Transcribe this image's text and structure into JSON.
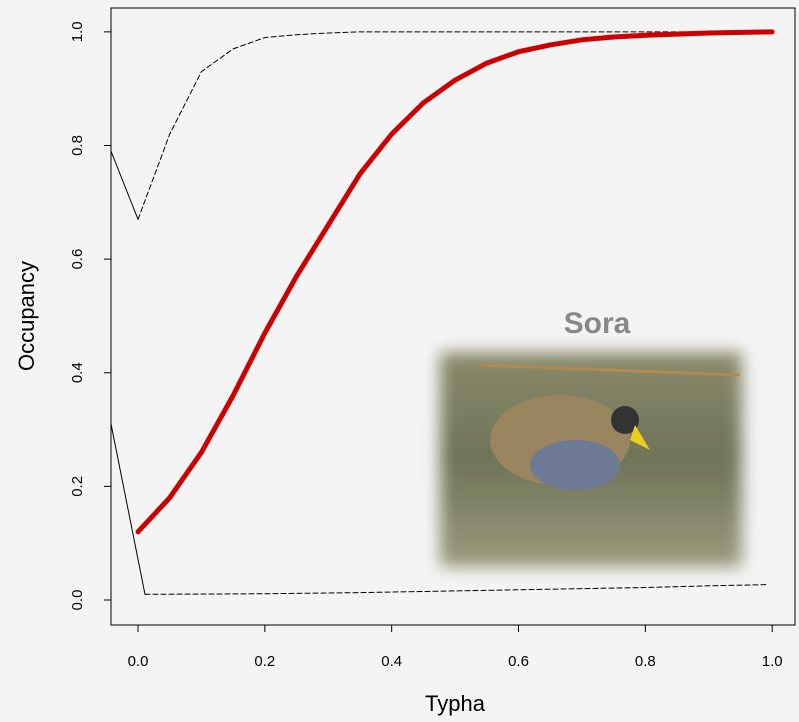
{
  "chart_data": {
    "type": "line",
    "xlabel": "Typha",
    "ylabel": "Occupancy",
    "annotation": "Sora",
    "xlim": [
      -0.0426,
      1.036
    ],
    "ylim": [
      -0.044,
      1.042
    ],
    "xticks": [
      {
        "value": 0,
        "label": "0.0"
      },
      {
        "value": 0.2,
        "label": "0.2"
      },
      {
        "value": 0.4,
        "label": "0.4"
      },
      {
        "value": 0.6,
        "label": "0.6"
      },
      {
        "value": 0.8,
        "label": "0.8"
      },
      {
        "value": 1,
        "label": "1.0"
      }
    ],
    "yticks": [
      {
        "value": 0,
        "label": "0.0"
      },
      {
        "value": 0.2,
        "label": "0.2"
      },
      {
        "value": 0.4,
        "label": "0.4"
      },
      {
        "value": 0.6,
        "label": "0.6"
      },
      {
        "value": 0.8,
        "label": "0.8"
      },
      {
        "value": 1,
        "label": "1.0"
      }
    ],
    "series": [
      {
        "color": "#000000",
        "style": "solid",
        "width": 1,
        "x": [
          -0.0426,
          0
        ],
        "values": [
          0.79,
          0.67
        ]
      },
      {
        "color": "#000000",
        "style": "solid",
        "width": 1,
        "x": [
          -0.0426,
          0.011
        ],
        "values": [
          0.31,
          0.01
        ]
      },
      {
        "color": "#000000",
        "style": "dashed",
        "width": 1,
        "x": [
          0,
          0.05,
          0.1,
          0.15,
          0.2,
          0.25,
          0.3,
          0.35,
          0.5,
          0.7,
          1
        ],
        "values": [
          0.67,
          0.82,
          0.93,
          0.97,
          0.99,
          0.995,
          0.998,
          1,
          1,
          1,
          1
        ]
      },
      {
        "color": "#000000",
        "style": "dashed",
        "width": 1,
        "x": [
          0.011,
          0.2,
          0.35,
          0.5,
          0.6,
          0.7,
          0.8,
          0.9,
          0.99
        ],
        "values": [
          0.01,
          0.011,
          0.013,
          0.016,
          0.018,
          0.02,
          0.022,
          0.025,
          0.027
        ]
      },
      {
        "color": "#cc0000",
        "style": "solid",
        "width": 5,
        "x": [
          0,
          0.05,
          0.1,
          0.15,
          0.2,
          0.25,
          0.3,
          0.35,
          0.4,
          0.45,
          0.5,
          0.55,
          0.6,
          0.65,
          0.7,
          0.75,
          0.8,
          0.85,
          0.9,
          0.95,
          1
        ],
        "values": [
          0.12,
          0.18,
          0.26,
          0.36,
          0.47,
          0.57,
          0.66,
          0.75,
          0.82,
          0.875,
          0.915,
          0.945,
          0.965,
          0.977,
          0.986,
          0.991,
          0.994,
          0.996,
          0.998,
          0.999,
          1
        ]
      }
    ]
  }
}
